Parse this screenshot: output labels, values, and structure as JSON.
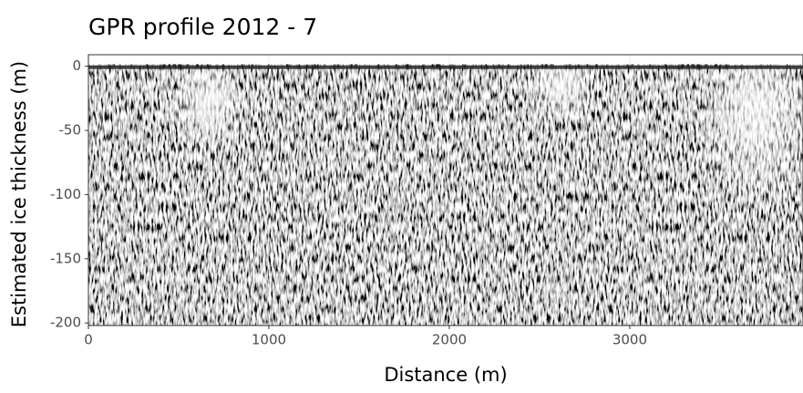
{
  "chart_data": {
    "type": "raster",
    "title": "GPR profile 2012 - 7",
    "x_label": "Distance (m)",
    "y_label": "Estimated ice thickness (m)",
    "xlim": [
      0,
      3960
    ],
    "xticks": [
      0,
      1000,
      2000,
      3000
    ],
    "ylim": [
      -202,
      9
    ],
    "yticks": [
      0,
      -50,
      -100,
      -150,
      -200
    ],
    "grid": true
  }
}
